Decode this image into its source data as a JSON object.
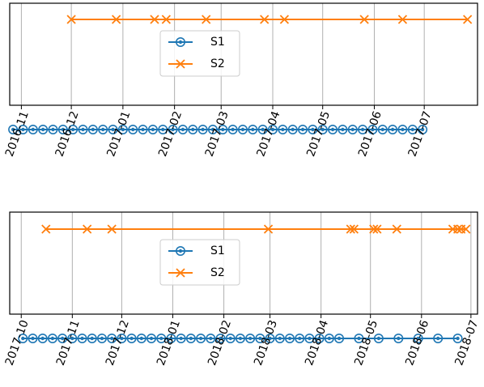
{
  "colors": {
    "s1": "#1f77b4",
    "s2": "#ff7f0e",
    "grid": "#b0b0b0",
    "axis": "#000000"
  },
  "chart_data": [
    {
      "type": "line",
      "x_type": "date",
      "xlim": [
        "2016-10-25",
        "2017-08-02"
      ],
      "ticks": [
        "2016-11-01",
        "2016-12-01",
        "2017-01-01",
        "2017-02-01",
        "2017-03-01",
        "2017-04-01",
        "2017-05-01",
        "2017-06-01",
        "2017-07-01"
      ],
      "tick_labels": [
        "2016-11",
        "2016-12",
        "2017-01",
        "2017-02",
        "2017-03",
        "2017-04",
        "2017-05",
        "2017-06",
        "2017-07"
      ],
      "grid": "x",
      "legend": "upper-center",
      "y_ticks_visible": false,
      "series": [
        {
          "name": "S1",
          "marker": "circle",
          "y": 0,
          "x_start": "2016-10-27",
          "x_step_days": 6,
          "x_end": "2017-07-01"
        },
        {
          "name": "S2",
          "marker": "x",
          "y": 1,
          "x": [
            "2016-12-01",
            "2016-12-28",
            "2017-01-20",
            "2017-01-27",
            "2017-02-20",
            "2017-03-27",
            "2017-04-08",
            "2017-05-26",
            "2017-06-18",
            "2017-07-27"
          ]
        }
      ]
    },
    {
      "type": "line",
      "x_type": "date",
      "xlim": [
        "2017-09-24",
        "2018-07-05"
      ],
      "ticks": [
        "2017-10-01",
        "2017-11-01",
        "2017-12-01",
        "2018-01-01",
        "2018-02-01",
        "2018-03-01",
        "2018-04-01",
        "2018-05-01",
        "2018-06-01",
        "2018-07-01"
      ],
      "tick_labels": [
        "2017-10",
        "2017-11",
        "2017-12",
        "2018-01",
        "2018-02",
        "2018-03",
        "2018-04",
        "2018-05",
        "2018-06",
        "2018-07"
      ],
      "grid": "x",
      "legend": "upper-center",
      "y_ticks_visible": false,
      "series": [
        {
          "name": "S1",
          "marker": "circle",
          "y": 0,
          "x": [
            "2017-10-02",
            "2017-10-08",
            "2017-10-14",
            "2017-10-20",
            "2017-10-26",
            "2017-11-01",
            "2017-11-07",
            "2017-11-13",
            "2017-11-19",
            "2017-11-25",
            "2017-12-01",
            "2017-12-07",
            "2017-12-13",
            "2017-12-19",
            "2017-12-25",
            "2017-12-31",
            "2018-01-06",
            "2018-01-12",
            "2018-01-18",
            "2018-01-24",
            "2018-01-30",
            "2018-02-05",
            "2018-02-11",
            "2018-02-17",
            "2018-02-23",
            "2018-03-01",
            "2018-03-07",
            "2018-03-13",
            "2018-03-19",
            "2018-03-25",
            "2018-03-31",
            "2018-04-06",
            "2018-04-12",
            "2018-04-24",
            "2018-05-06",
            "2018-05-18",
            "2018-05-30",
            "2018-06-11",
            "2018-06-23"
          ]
        },
        {
          "name": "S2",
          "marker": "x",
          "y": 1,
          "x": [
            "2017-10-16",
            "2017-11-10",
            "2017-11-25",
            "2018-02-28",
            "2018-04-19",
            "2018-04-21",
            "2018-05-03",
            "2018-05-05",
            "2018-05-17",
            "2018-06-20",
            "2018-06-23",
            "2018-06-25",
            "2018-06-28"
          ]
        }
      ]
    }
  ]
}
